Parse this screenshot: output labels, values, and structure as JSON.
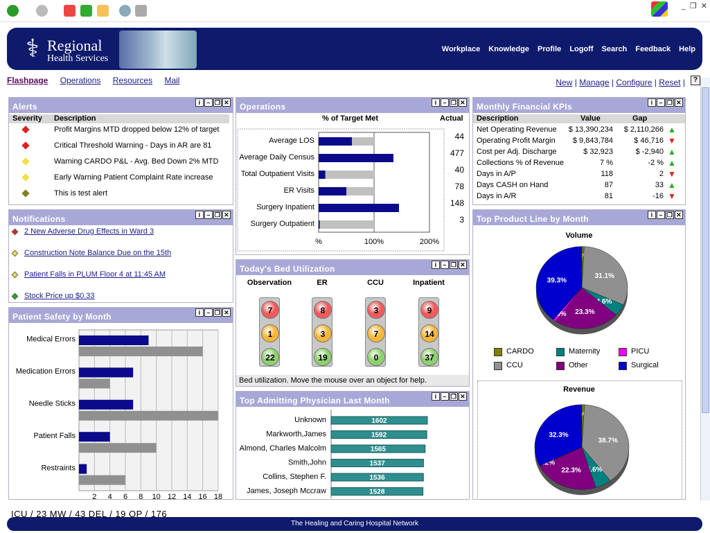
{
  "header": {
    "title": "Regional",
    "subtitle": "Health Services",
    "nav": [
      "Workplace",
      "Knowledge",
      "Profile",
      "Logoff",
      "Search",
      "Feedback",
      "Help"
    ]
  },
  "subnav": {
    "tabs": [
      "Flashpage",
      "Operations",
      "Resources",
      "Mail"
    ],
    "actions": [
      "New",
      "Manage",
      "Configure",
      "Reset"
    ],
    "help": "?"
  },
  "alerts": {
    "title": "Alerts",
    "col_severity": "Severity",
    "col_description": "Description",
    "items": [
      {
        "severity_color": "#dd2222",
        "text": "Profit Margins MTD dropped below 12% of target"
      },
      {
        "severity_color": "#dd2222",
        "text": "Critical Threshold Warning - Days in AR are 81"
      },
      {
        "severity_color": "#f0e040",
        "text": "Warning CARDO P&L - Avg. Bed Down 2% MTD"
      },
      {
        "severity_color": "#f0e040",
        "text": "Early Warning Patient Complaint Rate increase"
      },
      {
        "severity_color": "#808020",
        "text": "This is test alert"
      }
    ]
  },
  "notifications": {
    "title": "Notifications",
    "items": [
      {
        "color": "#dd2222",
        "text": "2 New Adverse Drug Effects in Ward 3"
      },
      {
        "color": "#f0e040",
        "text": "Construction Note Balance Due on the 15th"
      },
      {
        "color": "#f0e040",
        "text": "Patient Falls in PLUM Floor 4 at 11:45 AM"
      },
      {
        "color": "#22aa22",
        "text": "Stock Price up $0.33"
      }
    ]
  },
  "patient_safety": {
    "title": "Patient Safety by Month",
    "chart_data": {
      "type": "bar",
      "categories": [
        "Medical Errors",
        "Medication Errors",
        "Needle Sticks",
        "Patient Falls",
        "Restraints"
      ],
      "series": [
        {
          "color": "#0a0a8a",
          "values": [
            9,
            7,
            7,
            4,
            1
          ]
        },
        {
          "color": "#909090",
          "values": [
            16,
            4,
            18,
            10,
            6
          ]
        }
      ],
      "xticks": [
        "2",
        "4",
        "6",
        "8",
        "10",
        "12",
        "14",
        "16",
        "18"
      ],
      "xlim": [
        0,
        18
      ]
    }
  },
  "operations": {
    "title": "Operations",
    "col_target": "% of Target Met",
    "col_actual": "Actual",
    "chart_data": {
      "type": "bar",
      "categories": [
        "Average LOS",
        "Average Daily Census",
        "Total Outpatient Visits",
        "ER Visits",
        "Surgery Inpatient",
        "Surgery Outpatient"
      ],
      "percent_of_target": [
        60,
        135,
        12,
        50,
        145,
        2
      ],
      "actual": [
        "44",
        "477",
        "40",
        "78",
        "148",
        "3"
      ],
      "xticks": [
        "%",
        "100%",
        "200%"
      ],
      "xlim": [
        0,
        200
      ]
    }
  },
  "bed_util": {
    "title": "Today's Bed Utilization",
    "units": [
      {
        "name": "Observation",
        "red": "7",
        "yellow": "1",
        "green": "22"
      },
      {
        "name": "ER",
        "red": "8",
        "yellow": "3",
        "green": "19"
      },
      {
        "name": "CCU",
        "red": "3",
        "yellow": "7",
        "green": "0"
      },
      {
        "name": "Inpatient",
        "red": "9",
        "yellow": "14",
        "green": "37"
      }
    ],
    "help": "Bed utilization.  Move the mouse over an object for help."
  },
  "physicians": {
    "title": "Top Admitting Physician Last Month",
    "chart_data": {
      "type": "bar",
      "categories": [
        "Unknown",
        "Markworth,James",
        "Almond, Charles Malcolm",
        "Smith,John",
        "Collins, Stephen F.",
        "James, Joseph Mccraw"
      ],
      "values": [
        1602,
        1592,
        1565,
        1537,
        1536,
        1528
      ],
      "labels": [
        "1602",
        "1592",
        "1565",
        "1537",
        "1536",
        "1528"
      ]
    }
  },
  "kpis": {
    "title": "Monthly Financial KPIs",
    "cols": [
      "Description",
      "Value",
      "Gap"
    ],
    "rows": [
      {
        "desc": "Net Operating Revenue",
        "value": "$ 13,390,234",
        "gap": "$ 2,110,266",
        "dir": "up"
      },
      {
        "desc": "Operating Profit Margin",
        "value": "$ 9,843,784",
        "gap": "$ 46,716",
        "dir": "down"
      },
      {
        "desc": "Cost per Adj. Discharge",
        "value": "$ 32,923",
        "gap": "$ -2,940",
        "dir": "up"
      },
      {
        "desc": "Collections % of Revenue",
        "value": "7 %",
        "gap": "-2 %",
        "dir": "up"
      },
      {
        "desc": "Days in A/P",
        "value": "118",
        "gap": "2",
        "dir": "down"
      },
      {
        "desc": "Days CASH on Hand",
        "value": "87",
        "gap": "33",
        "dir": "up"
      },
      {
        "desc": "Days in A/R",
        "value": "81",
        "gap": "-16",
        "dir": "down"
      }
    ]
  },
  "product_line": {
    "title": "Top Product Line by Month",
    "legend": [
      {
        "name": "CARDO",
        "color": "#808000"
      },
      {
        "name": "Maternity",
        "color": "#008080"
      },
      {
        "name": "PICU",
        "color": "#ff00ff"
      },
      {
        "name": "CCU",
        "color": "#909090"
      },
      {
        "name": "Other",
        "color": "#800080"
      },
      {
        "name": "Surgical",
        "color": "#0000cc"
      }
    ],
    "chart_data": [
      {
        "type": "pie",
        "title": "Volume",
        "slices": [
          {
            "name": "CARDO",
            "value": 0.8,
            "label": ".8%"
          },
          {
            "name": "CCU",
            "value": 31.1,
            "label": "31.1%"
          },
          {
            "name": "Maternity",
            "value": 4.6,
            "label": "4.6%"
          },
          {
            "name": "Other",
            "value": 23.3,
            "label": "23.3%"
          },
          {
            "name": "PICU",
            "value": 0.9,
            "label": ".9%"
          },
          {
            "name": "Surgical",
            "value": 39.3,
            "label": "39.3%"
          }
        ]
      },
      {
        "type": "pie",
        "title": "Revenue",
        "slices": [
          {
            "name": "CARDO",
            "value": 0.9,
            "label": ".9%"
          },
          {
            "name": "CCU",
            "value": 38.7,
            "label": "38.7%"
          },
          {
            "name": "Maternity",
            "value": 5.6,
            "label": "5.6%"
          },
          {
            "name": "Other",
            "value": 22.3,
            "label": "22.3%"
          },
          {
            "name": "PICU",
            "value": 0.2,
            "label": ".2%"
          },
          {
            "name": "Surgical",
            "value": 32.3,
            "label": "32.3%"
          }
        ]
      }
    ]
  },
  "status_line": "ICU / 23   MW / 43   DEL / 19   OP / 176",
  "footer": "The Healing and Caring Hospital Network"
}
